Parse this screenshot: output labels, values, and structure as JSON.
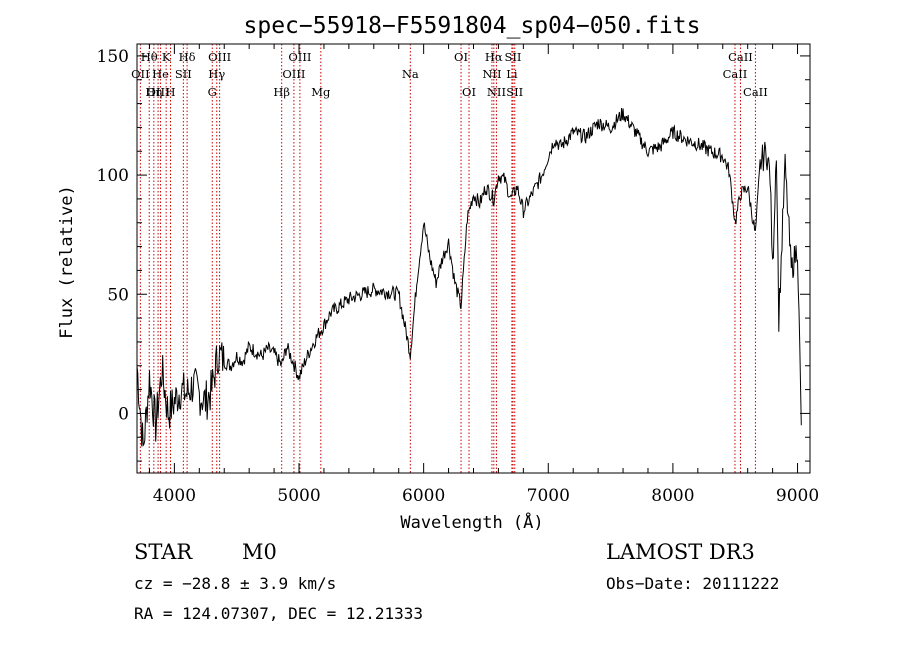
{
  "chart_data": {
    "type": "line",
    "title": "spec−55918−F5591804_sp04−050.fits",
    "xlabel": "Wavelength (Å)",
    "ylabel": "Flux (relative)",
    "xlim": [
      3700,
      9100
    ],
    "ylim": [
      -25,
      155
    ],
    "x_ticks": [
      4000,
      5000,
      6000,
      7000,
      8000,
      9000
    ],
    "y_ticks": [
      0,
      50,
      100,
      150
    ],
    "grid": false,
    "series": [
      {
        "x": [
          3700,
          3750,
          3800,
          3850,
          3900,
          3950,
          4000,
          4050,
          4100,
          4150,
          4200,
          4250,
          4300,
          4350,
          4400,
          4450,
          4500,
          4550,
          4600,
          4650,
          4700,
          4750,
          4800,
          4861,
          4900,
          4950,
          5000,
          5050,
          5100,
          5150,
          5200,
          5250,
          5300,
          5400,
          5500,
          5600,
          5700,
          5800,
          5893,
          5950,
          6000,
          6050,
          6100,
          6150,
          6200,
          6250,
          6300,
          6350,
          6400,
          6450,
          6500,
          6563,
          6600,
          6650,
          6700,
          6750,
          6800,
          6850,
          6900,
          6950,
          7000,
          7050,
          7100,
          7200,
          7300,
          7400,
          7500,
          7600,
          7700,
          7800,
          7900,
          8000,
          8100,
          8200,
          8300,
          8400,
          8450,
          8500,
          8542,
          8600,
          8662,
          8700,
          8750,
          8780,
          8800,
          8830,
          8850,
          8900,
          8950,
          9000,
          9030
        ],
        "y": [
          20,
          -15,
          15,
          -5,
          18,
          0,
          5,
          10,
          8,
          12,
          8,
          5,
          10,
          25,
          22,
          20,
          24,
          22,
          28,
          26,
          24,
          27,
          25,
          20,
          28,
          22,
          15,
          22,
          28,
          33,
          37,
          42,
          44,
          48,
          50,
          52,
          51,
          50,
          25,
          58,
          80,
          65,
          55,
          65,
          72,
          55,
          45,
          82,
          92,
          88,
          95,
          90,
          100,
          98,
          90,
          95,
          85,
          90,
          95,
          100,
          108,
          115,
          112,
          118,
          116,
          122,
          120,
          126,
          118,
          110,
          112,
          118,
          115,
          113,
          110,
          108,
          102,
          80,
          92,
          95,
          75,
          105,
          110,
          100,
          60,
          112,
          40,
          104,
          60,
          70,
          -5
        ]
      }
    ],
    "lines": [
      {
        "label": "Hθ",
        "x": 3798,
        "row": 0
      },
      {
        "label": "OII",
        "x": 3727,
        "row": 1
      },
      {
        "label": "OIII",
        "x": 3869,
        "row": 2
      },
      {
        "label": "K",
        "x": 3934,
        "row": 0
      },
      {
        "label": "He",
        "x": 3889,
        "row": 1
      },
      {
        "label": "Hη",
        "x": 3835,
        "row": 2
      },
      {
        "label": "Hδ",
        "x": 4102,
        "row": 0
      },
      {
        "label": "SII",
        "x": 4072,
        "row": 1
      },
      {
        "label": "H",
        "x": 3969,
        "row": 2
      },
      {
        "label": "OIII",
        "x": 4363,
        "row": 0
      },
      {
        "label": "Hγ",
        "x": 4340,
        "row": 1
      },
      {
        "label": "G",
        "x": 4304,
        "row": 2
      },
      {
        "label": "OIII",
        "x": 5007,
        "row": 0
      },
      {
        "label": "OIII",
        "x": 4959,
        "row": 1
      },
      {
        "label": "Hβ",
        "x": 4861,
        "row": 2
      },
      {
        "label": "Mg",
        "x": 5175,
        "row": 2
      },
      {
        "label": "Na",
        "x": 5893,
        "row": 1
      },
      {
        "label": "OI",
        "x": 6300,
        "row": 0
      },
      {
        "label": "OI",
        "x": 6364,
        "row": 2
      },
      {
        "label": "Hα",
        "x": 6563,
        "row": 0
      },
      {
        "label": "NII",
        "x": 6548,
        "row": 1
      },
      {
        "label": "NII",
        "x": 6584,
        "row": 2
      },
      {
        "label": "SII",
        "x": 6717,
        "row": 0
      },
      {
        "label": "Li",
        "x": 6708,
        "row": 1
      },
      {
        "label": "SII",
        "x": 6731,
        "row": 2
      },
      {
        "label": "CaII",
        "x": 8542,
        "row": 0
      },
      {
        "label": "CaII",
        "x": 8498,
        "row": 1
      },
      {
        "label": "CaII",
        "x": 8662,
        "row": 2
      }
    ]
  },
  "info": {
    "object_class": "STAR",
    "subclass": "M0",
    "survey": "LAMOST DR3",
    "redshift": "cz = −28.8 ± 3.9 km/s",
    "obs_date": "Obs−Date: 20111222",
    "coords": "RA = 124.07307, DEC =  12.21333"
  },
  "colors": {
    "spectrum": "#000000",
    "marker": "#cc0000",
    "axes": "#000000"
  }
}
